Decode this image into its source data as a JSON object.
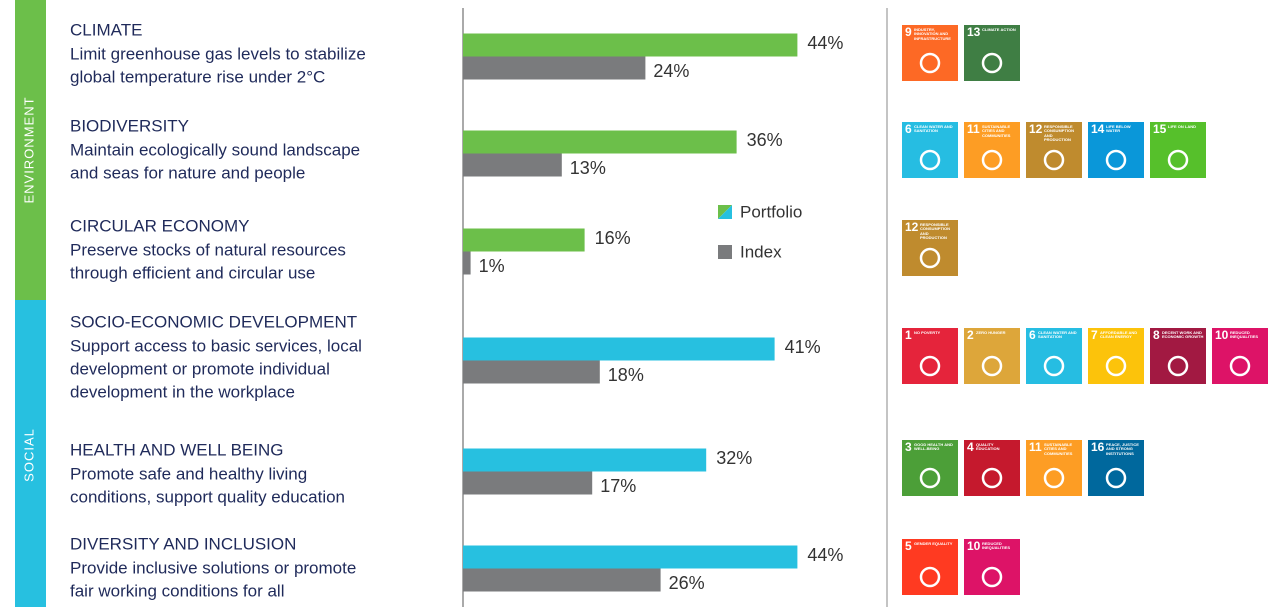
{
  "chart_data": {
    "type": "bar",
    "orientation": "horizontal",
    "categories": [
      "CLIMATE",
      "BIODIVERSITY",
      "CIRCULAR ECONOMY",
      "SOCIO-ECONOMIC DEVELOPMENT",
      "HEALTH AND WELL BEING",
      "DIVERSITY AND INCLUSION"
    ],
    "series": [
      {
        "name": "Portfolio",
        "colors": [
          "#6cbf4a",
          "#6cbf4a",
          "#6cbf4a",
          "#27c0e0",
          "#27c0e0",
          "#27c0e0"
        ],
        "values": [
          44,
          36,
          16,
          41,
          32,
          44
        ],
        "value_labels": [
          "44%",
          "36%",
          "16%",
          "41%",
          "32%",
          "44%"
        ]
      },
      {
        "name": "Index",
        "color": "#7a7b7d",
        "values": [
          24,
          13,
          1,
          18,
          17,
          26
        ],
        "value_labels": [
          "24%",
          "13%",
          "1%",
          "18%",
          "17%",
          "26%"
        ]
      }
    ],
    "xlim": [
      0,
      50
    ],
    "legend": "right"
  },
  "descriptions": [
    [
      "Limit greenhouse gas levels to stabilize",
      "global temperature rise under 2°C"
    ],
    [
      "Maintain ecologically sound landscape",
      "and seas for nature and people"
    ],
    [
      "Preserve stocks of natural resources",
      "through efficient and circular use"
    ],
    [
      "Support access to basic services, local",
      "development or promote individual",
      "development in the workplace"
    ],
    [
      "Promote safe and healthy living",
      "conditions, support quality education"
    ],
    [
      "Provide inclusive solutions or promote",
      "fair working conditions for all"
    ]
  ],
  "groups": [
    {
      "label": "ENVIRONMENT",
      "color": "#6cbf4a"
    },
    {
      "label": "SOCIAL",
      "color": "#27c0e0"
    }
  ],
  "sdgs": [
    [
      {
        "number": 9,
        "label": "INDUSTRY, INNOVATION AND INFRASTRUCTURE",
        "color": "#fd6925"
      },
      {
        "number": 13,
        "label": "CLIMATE ACTION",
        "color": "#3f7e44"
      }
    ],
    [
      {
        "number": 6,
        "label": "CLEAN WATER AND SANITATION",
        "color": "#26bde2"
      },
      {
        "number": 11,
        "label": "SUSTAINABLE CITIES AND COMMUNITIES",
        "color": "#fd9d24"
      },
      {
        "number": 12,
        "label": "RESPONSIBLE CONSUMPTION AND PRODUCTION",
        "color": "#bf8b2e"
      },
      {
        "number": 14,
        "label": "LIFE BELOW WATER",
        "color": "#0a97d9"
      },
      {
        "number": 15,
        "label": "LIFE ON LAND",
        "color": "#56c02b"
      }
    ],
    [
      {
        "number": 12,
        "label": "RESPONSIBLE CONSUMPTION AND PRODUCTION",
        "color": "#bf8b2e"
      }
    ],
    [
      {
        "number": 1,
        "label": "NO POVERTY",
        "color": "#e5243b"
      },
      {
        "number": 2,
        "label": "ZERO HUNGER",
        "color": "#dda63a"
      },
      {
        "number": 6,
        "label": "CLEAN WATER AND SANITATION",
        "color": "#26bde2"
      },
      {
        "number": 7,
        "label": "AFFORDABLE AND CLEAN ENERGY",
        "color": "#fcc30b"
      },
      {
        "number": 8,
        "label": "DECENT WORK AND ECONOMIC GROWTH",
        "color": "#a21942"
      },
      {
        "number": 10,
        "label": "REDUCED INEQUALITIES",
        "color": "#dd1367"
      }
    ],
    [
      {
        "number": 3,
        "label": "GOOD HEALTH AND WELL-BEING",
        "color": "#4c9f38"
      },
      {
        "number": 4,
        "label": "QUALITY EDUCATION",
        "color": "#c5192d"
      },
      {
        "number": 11,
        "label": "SUSTAINABLE CITIES AND COMMUNITIES",
        "color": "#fd9d24"
      },
      {
        "number": 16,
        "label": "PEACE, JUSTICE AND STRONG INSTITUTIONS",
        "color": "#00689d"
      }
    ],
    [
      {
        "number": 5,
        "label": "GENDER EQUALITY",
        "color": "#ff3a21"
      },
      {
        "number": 10,
        "label": "REDUCED INEQUALITIES",
        "color": "#dd1367"
      }
    ]
  ]
}
